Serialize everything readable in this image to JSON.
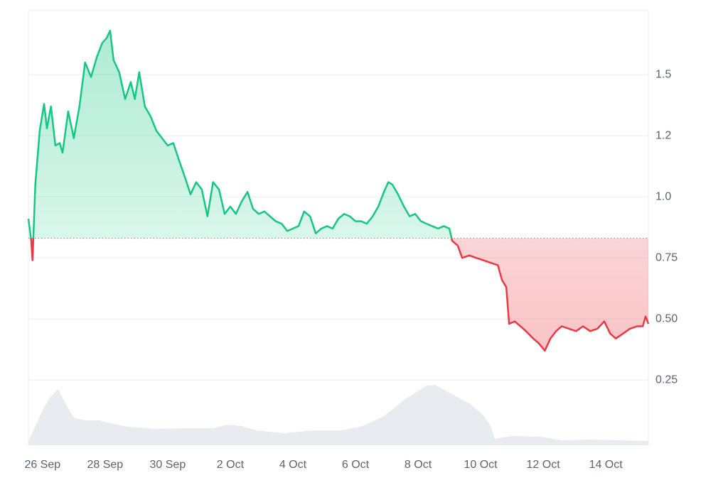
{
  "chart_data": {
    "type": "line",
    "x": [
      -0.45,
      -0.36,
      -0.32,
      -0.23,
      -0.09,
      0.05,
      0.14,
      0.27,
      0.41,
      0.55,
      0.64,
      0.82,
      1.0,
      1.18,
      1.36,
      1.55,
      1.73,
      1.91,
      2.05,
      2.16,
      2.27,
      2.45,
      2.64,
      2.82,
      2.95,
      3.09,
      3.27,
      3.45,
      3.64,
      3.82,
      4.0,
      4.18,
      4.36,
      4.55,
      4.73,
      4.91,
      5.09,
      5.27,
      5.45,
      5.64,
      5.82,
      6.0,
      6.18,
      6.36,
      6.55,
      6.73,
      6.91,
      7.09,
      7.27,
      7.45,
      7.64,
      7.82,
      8.0,
      8.18,
      8.36,
      8.55,
      8.73,
      8.91,
      9.09,
      9.27,
      9.45,
      9.64,
      9.82,
      10.0,
      10.18,
      10.36,
      10.55,
      10.73,
      10.91,
      11.05,
      11.18,
      11.36,
      11.55,
      11.73,
      11.91,
      12.09,
      12.27,
      12.45,
      12.64,
      12.82,
      13.0,
      13.09,
      13.27,
      13.41,
      13.64,
      13.86,
      14.09,
      14.32,
      14.55,
      14.68,
      14.82,
      14.91,
      15.09,
      15.27,
      15.45,
      15.68,
      15.86,
      16.05,
      16.23,
      16.41,
      16.59,
      16.82,
      17.05,
      17.27,
      17.5,
      17.73,
      17.95,
      18.14,
      18.32,
      18.55,
      18.77,
      19.0,
      19.18,
      19.27,
      19.36
    ],
    "values": [
      0.91,
      0.82,
      0.74,
      1.05,
      1.27,
      1.38,
      1.28,
      1.37,
      1.21,
      1.22,
      1.18,
      1.35,
      1.24,
      1.37,
      1.55,
      1.49,
      1.57,
      1.63,
      1.65,
      1.68,
      1.56,
      1.51,
      1.4,
      1.47,
      1.4,
      1.51,
      1.37,
      1.33,
      1.27,
      1.24,
      1.21,
      1.22,
      1.15,
      1.08,
      1.01,
      1.06,
      1.03,
      0.92,
      1.06,
      1.03,
      0.93,
      0.96,
      0.93,
      0.98,
      1.02,
      0.95,
      0.93,
      0.94,
      0.92,
      0.9,
      0.89,
      0.86,
      0.87,
      0.88,
      0.94,
      0.92,
      0.85,
      0.87,
      0.88,
      0.87,
      0.91,
      0.93,
      0.92,
      0.9,
      0.9,
      0.89,
      0.92,
      0.96,
      1.02,
      1.06,
      1.05,
      1.01,
      0.96,
      0.92,
      0.93,
      0.9,
      0.89,
      0.88,
      0.87,
      0.88,
      0.87,
      0.82,
      0.8,
      0.75,
      0.76,
      0.75,
      0.74,
      0.73,
      0.72,
      0.66,
      0.63,
      0.48,
      0.49,
      0.47,
      0.45,
      0.42,
      0.4,
      0.37,
      0.42,
      0.45,
      0.47,
      0.46,
      0.45,
      0.47,
      0.45,
      0.46,
      0.49,
      0.44,
      0.42,
      0.44,
      0.46,
      0.47,
      0.47,
      0.51,
      0.48
    ],
    "reference": 0.83,
    "up_color": "#16c784",
    "down_color": "#ea3943",
    "volume": {
      "x": [
        -0.45,
        -0.23,
        0,
        0.23,
        0.5,
        0.73,
        1.0,
        1.36,
        1.82,
        2.27,
        2.73,
        3.64,
        4.55,
        5.45,
        5.91,
        6.36,
        6.82,
        7.73,
        8.64,
        9.55,
        10.23,
        10.91,
        11.59,
        12.27,
        12.55,
        12.95,
        13.64,
        14.09,
        14.32,
        14.45,
        15.0,
        15.91,
        16.59,
        17.5,
        18.41,
        19.36
      ],
      "values": [
        5,
        27,
        49,
        67,
        79,
        59,
        39,
        35,
        35,
        30,
        26,
        23,
        24,
        24,
        29,
        27,
        21,
        17,
        21,
        21,
        27,
        41,
        65,
        84,
        85,
        75,
        59,
        42,
        27,
        9,
        13,
        12,
        7,
        8,
        7,
        6
      ],
      "vlim": [
        0,
        100
      ],
      "color": "#e8ecf1"
    },
    "xlim": [
      -0.45,
      19.36
    ],
    "xticks": [
      {
        "value": 0,
        "label": "26 Sep"
      },
      {
        "value": 2,
        "label": "28 Sep"
      },
      {
        "value": 4,
        "label": "30 Sep"
      },
      {
        "value": 6,
        "label": "2 Oct"
      },
      {
        "value": 8,
        "label": "4 Oct"
      },
      {
        "value": 10,
        "label": "6 Oct"
      },
      {
        "value": 12,
        "label": "8 Oct"
      },
      {
        "value": 14,
        "label": "10 Oct"
      },
      {
        "value": 16,
        "label": "12 Oct"
      },
      {
        "value": 18,
        "label": "14 Oct"
      }
    ],
    "ylim": [
      -0.017,
      1.762
    ],
    "yticks": [
      {
        "value": 1.5,
        "label": "1.5"
      },
      {
        "value": 1.25,
        "label": "1.2"
      },
      {
        "value": 1.0,
        "label": "1.0"
      },
      0.75,
      {
        "value": 0.5,
        "label": "0.50"
      },
      0.25
    ],
    "grid": true
  }
}
